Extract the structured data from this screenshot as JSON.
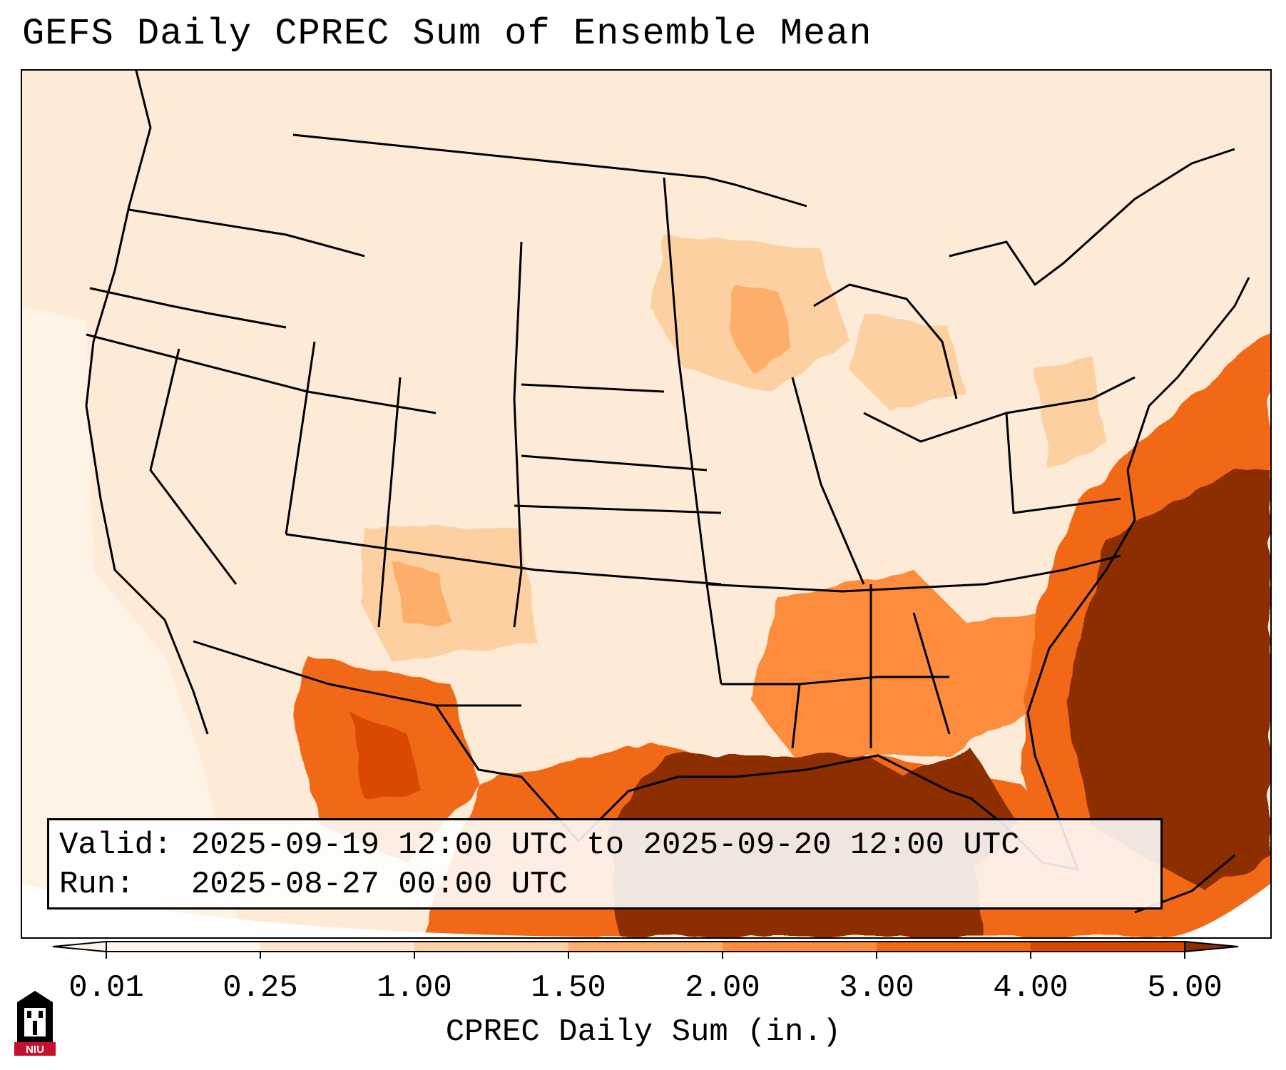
{
  "title": "GEFS Daily CPREC Sum of Ensemble Mean",
  "info": {
    "valid_line": "Valid: 2025-09-19 12:00 UTC to 2025-09-20 12:00 UTC",
    "run_line": "Run:   2025-08-27 00:00 UTC"
  },
  "colorbar": {
    "label": "CPREC Daily Sum (in.)",
    "ticks": [
      "0.01",
      "0.25",
      "1.00",
      "1.50",
      "2.00",
      "3.00",
      "4.00",
      "5.00"
    ],
    "colors": [
      "#fff5eb",
      "#fee6ce",
      "#fdd0a2",
      "#fdae6b",
      "#fd8d3c",
      "#f16913",
      "#d94801",
      "#8c2d04"
    ]
  },
  "logo": {
    "text": "NIU",
    "colors": {
      "red": "#c8102e",
      "black": "#000000"
    }
  }
}
